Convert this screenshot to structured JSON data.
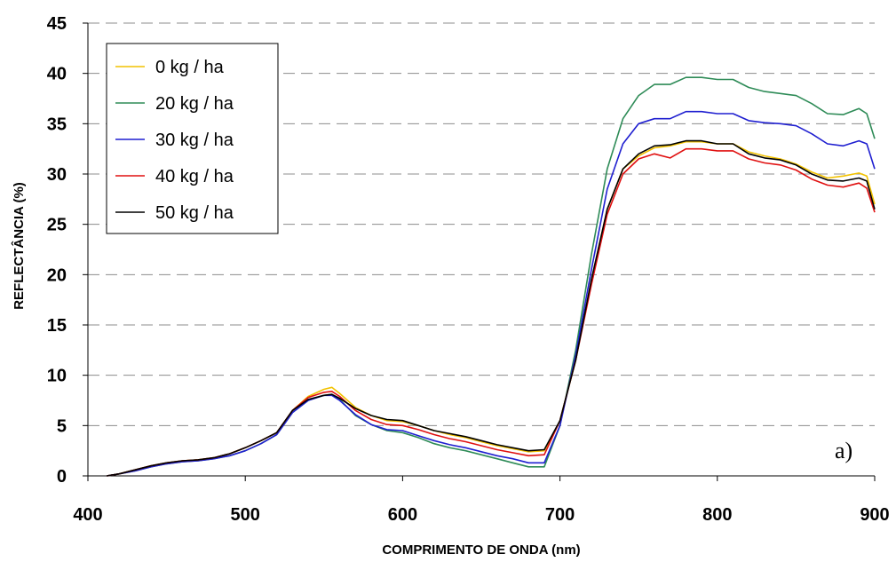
{
  "chart_data": {
    "type": "line",
    "title": "",
    "xlabel": "COMPRIMENTO DE ONDA (nm)",
    "ylabel": "REFLECTÂNCIA (%)",
    "xlim": [
      400,
      900
    ],
    "ylim": [
      0,
      45
    ],
    "xticks": [
      "400",
      "500",
      "600",
      "700",
      "800",
      "900"
    ],
    "yticks": [
      "0",
      "5",
      "10",
      "15",
      "20",
      "25",
      "30",
      "35",
      "40",
      "45"
    ],
    "grid": "horizontal dashed",
    "legend_position": "top-left",
    "annotation": "a)",
    "series": [
      {
        "name": "0 kg / ha",
        "color": "#f2c200",
        "x": [
          412,
          420,
          430,
          440,
          450,
          460,
          470,
          480,
          490,
          500,
          510,
          520,
          530,
          540,
          550,
          555,
          560,
          570,
          580,
          590,
          600,
          610,
          620,
          630,
          640,
          650,
          660,
          670,
          680,
          690,
          700,
          710,
          720,
          730,
          740,
          750,
          760,
          770,
          780,
          790,
          800,
          810,
          820,
          830,
          840,
          850,
          860,
          870,
          880,
          890,
          895,
          900
        ],
        "y": [
          0,
          0.2,
          0.6,
          1.0,
          1.3,
          1.5,
          1.6,
          1.8,
          2.2,
          2.8,
          3.5,
          4.3,
          6.5,
          7.9,
          8.6,
          8.8,
          8.2,
          6.8,
          6.0,
          5.5,
          5.4,
          5.0,
          4.5,
          4.1,
          3.8,
          3.4,
          3.0,
          2.7,
          2.4,
          2.5,
          5.5,
          11.5,
          19.5,
          26.5,
          30.5,
          31.8,
          32.6,
          32.8,
          33.2,
          33.2,
          33.0,
          33.0,
          32.2,
          31.8,
          31.5,
          31.0,
          30.2,
          29.6,
          29.8,
          30.1,
          29.8,
          27.0
        ]
      },
      {
        "name": "20 kg / ha",
        "color": "#2e8b57",
        "x": [
          412,
          420,
          430,
          440,
          450,
          460,
          470,
          480,
          490,
          500,
          510,
          520,
          530,
          540,
          550,
          555,
          560,
          570,
          580,
          590,
          600,
          610,
          620,
          630,
          640,
          650,
          660,
          670,
          680,
          690,
          700,
          710,
          720,
          730,
          740,
          750,
          760,
          770,
          780,
          790,
          800,
          810,
          820,
          830,
          840,
          850,
          860,
          870,
          880,
          890,
          895,
          900
        ],
        "y": [
          0,
          0.2,
          0.5,
          0.9,
          1.2,
          1.4,
          1.5,
          1.7,
          2.0,
          2.5,
          3.2,
          4.1,
          6.3,
          7.5,
          8.0,
          8.1,
          7.6,
          6.0,
          5.1,
          4.5,
          4.3,
          3.8,
          3.2,
          2.8,
          2.5,
          2.1,
          1.7,
          1.3,
          0.9,
          0.9,
          5.0,
          12.5,
          22.0,
          30.5,
          35.5,
          37.8,
          38.9,
          38.9,
          39.6,
          39.6,
          39.4,
          39.4,
          38.6,
          38.2,
          38.0,
          37.8,
          37.0,
          36.0,
          35.9,
          36.5,
          36.0,
          33.5
        ]
      },
      {
        "name": "30 kg / ha",
        "color": "#1f1fd0",
        "x": [
          412,
          420,
          430,
          440,
          450,
          460,
          470,
          480,
          490,
          500,
          510,
          520,
          530,
          540,
          550,
          555,
          560,
          570,
          580,
          590,
          600,
          610,
          620,
          630,
          640,
          650,
          660,
          670,
          680,
          690,
          700,
          710,
          720,
          730,
          740,
          750,
          760,
          770,
          780,
          790,
          800,
          810,
          820,
          830,
          840,
          850,
          860,
          870,
          880,
          890,
          895,
          900
        ],
        "y": [
          0,
          0.2,
          0.5,
          0.9,
          1.2,
          1.4,
          1.5,
          1.7,
          2.0,
          2.5,
          3.2,
          4.1,
          6.3,
          7.5,
          8.0,
          8.0,
          7.5,
          6.1,
          5.1,
          4.6,
          4.5,
          4.0,
          3.5,
          3.1,
          2.8,
          2.4,
          2.0,
          1.7,
          1.3,
          1.3,
          5.0,
          12.0,
          20.5,
          28.5,
          33.0,
          35.0,
          35.5,
          35.5,
          36.2,
          36.2,
          36.0,
          36.0,
          35.3,
          35.1,
          35.0,
          34.8,
          34.0,
          33.0,
          32.8,
          33.3,
          33.0,
          30.5
        ]
      },
      {
        "name": "40 kg / ha",
        "color": "#e01010",
        "x": [
          412,
          420,
          430,
          440,
          450,
          460,
          470,
          480,
          490,
          500,
          510,
          520,
          530,
          540,
          550,
          555,
          560,
          570,
          580,
          590,
          600,
          610,
          620,
          630,
          640,
          650,
          660,
          670,
          680,
          690,
          700,
          710,
          720,
          730,
          740,
          750,
          760,
          770,
          780,
          790,
          800,
          810,
          820,
          830,
          840,
          850,
          860,
          870,
          880,
          890,
          895,
          900
        ],
        "y": [
          0,
          0.2,
          0.6,
          1.0,
          1.3,
          1.5,
          1.6,
          1.8,
          2.2,
          2.8,
          3.5,
          4.3,
          6.5,
          7.8,
          8.3,
          8.4,
          7.9,
          6.5,
          5.6,
          5.1,
          5.0,
          4.6,
          4.1,
          3.7,
          3.4,
          3.0,
          2.6,
          2.3,
          2.0,
          2.1,
          5.5,
          11.5,
          19.0,
          26.0,
          30.0,
          31.5,
          32.0,
          31.6,
          32.5,
          32.5,
          32.3,
          32.3,
          31.5,
          31.1,
          30.9,
          30.4,
          29.5,
          28.9,
          28.7,
          29.1,
          28.6,
          26.2
        ]
      },
      {
        "name": "50 kg / ha",
        "color": "#000000",
        "x": [
          412,
          420,
          430,
          440,
          450,
          460,
          470,
          480,
          490,
          500,
          510,
          520,
          530,
          540,
          550,
          555,
          560,
          570,
          580,
          590,
          600,
          610,
          620,
          630,
          640,
          650,
          660,
          670,
          680,
          690,
          700,
          710,
          720,
          730,
          740,
          750,
          760,
          770,
          780,
          790,
          800,
          810,
          820,
          830,
          840,
          850,
          860,
          870,
          880,
          890,
          895,
          900
        ],
        "y": [
          0,
          0.2,
          0.6,
          1.0,
          1.3,
          1.5,
          1.6,
          1.8,
          2.2,
          2.8,
          3.5,
          4.3,
          6.5,
          7.6,
          8.0,
          8.1,
          7.7,
          6.7,
          6.0,
          5.6,
          5.5,
          5.0,
          4.5,
          4.2,
          3.9,
          3.5,
          3.1,
          2.8,
          2.5,
          2.6,
          5.5,
          11.5,
          19.5,
          26.5,
          30.5,
          32.0,
          32.8,
          32.9,
          33.3,
          33.3,
          33.0,
          33.0,
          32.0,
          31.6,
          31.4,
          30.9,
          30.0,
          29.4,
          29.3,
          29.6,
          29.3,
          26.5
        ]
      }
    ]
  }
}
